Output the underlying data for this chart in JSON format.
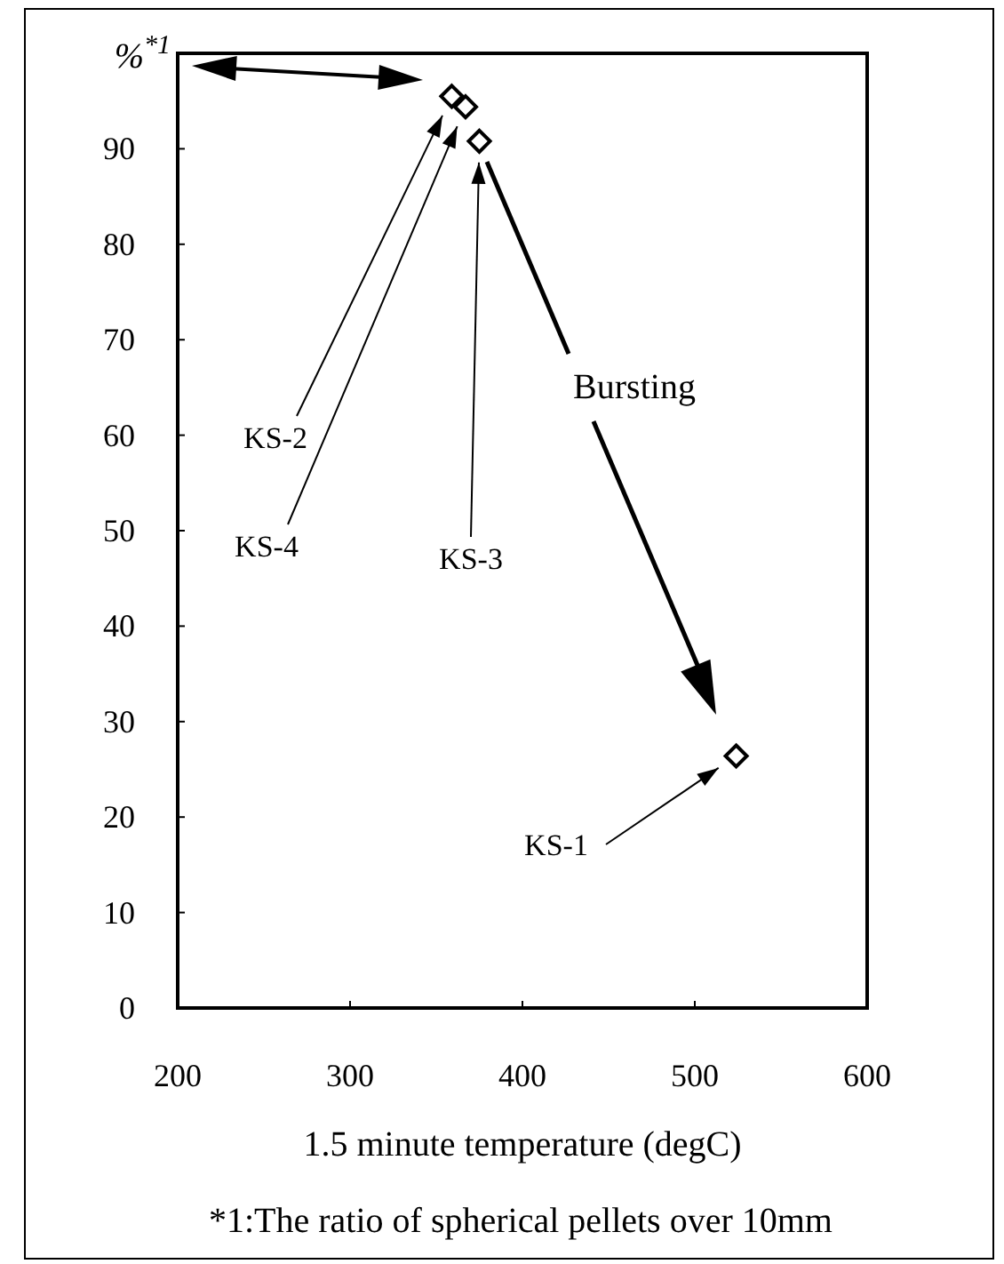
{
  "chart_data": {
    "type": "scatter",
    "xlabel": "1.5 minute temperature (degC)",
    "ylabel": "%$^{*1}$",
    "series": [
      {
        "color": "#000000",
        "x": [
          359,
          367,
          375,
          524
        ],
        "values": [
          95.5,
          94.4,
          90.8,
          26.4
        ]
      }
    ],
    "xlim": [
      200,
      600
    ],
    "xticks": [
      200,
      300,
      400,
      500,
      600
    ],
    "ylim": [
      0,
      100
    ],
    "yticks": [
      0,
      10,
      20,
      30,
      40,
      50,
      60,
      70,
      80,
      90
    ],
    "grid": false,
    "marker": "diamond",
    "annotations": [
      "KS-2",
      "KS-4",
      "KS-3",
      "KS-1",
      "Bursting",
      "*1:The ratio of spherical pellets over 10mm"
    ]
  }
}
